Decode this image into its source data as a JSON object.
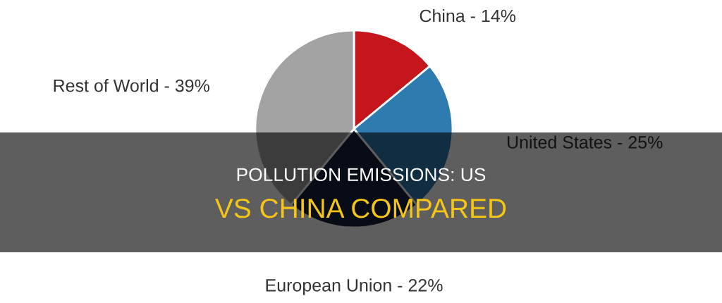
{
  "chart_data": {
    "type": "pie",
    "title": "POLLUTION EMISSIONS: US",
    "subtitle": "VS CHINA COMPARED",
    "categories": [
      "China - 14%",
      "United States - 25%",
      "European Union - 22%",
      "Rest of World - 39%"
    ],
    "values": [
      14,
      25,
      22,
      39
    ],
    "colors": [
      "#c4161c",
      "#2e7bb0",
      "#14213d",
      "#a3a3a3"
    ]
  }
}
